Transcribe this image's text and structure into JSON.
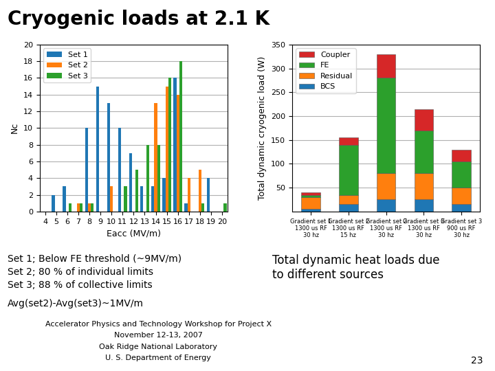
{
  "title": "Cryogenic loads at 2.1 K",
  "annotations": [
    "Set 1; Below FE threshold (~9MV/m)",
    "Set 2; 80 % of individual limits",
    "Set 3; 88 % of collective limits",
    "Avg(set2)-Avg(set3)~1MV/m",
    "Total dynamic heat loads due\nto different sources",
    "Accelerator Physics and Technology Workshop for Project X",
    "November 12-13, 2007",
    "Oak Ridge National Laboratory",
    "U. S. Department of Energy",
    "23"
  ],
  "chart_data": [
    {
      "type": "bar",
      "x_label": "Eacc (MV/m)",
      "y_label": "Nc",
      "x": [
        4,
        5,
        6,
        7,
        8,
        9,
        10,
        11,
        12,
        13,
        14,
        15,
        16,
        17,
        18,
        19,
        20
      ],
      "xlim": [
        3.5,
        20.5
      ],
      "xticks": [
        4,
        5,
        6,
        7,
        8,
        9,
        10,
        11,
        12,
        13,
        14,
        15,
        16,
        17,
        18,
        19,
        20
      ],
      "ylim": [
        0,
        20
      ],
      "yticks": [
        0,
        2,
        4,
        6,
        8,
        10,
        12,
        14,
        16,
        18,
        20
      ],
      "grid": true,
      "legend": "upper left",
      "series": [
        {
          "name": "Set 1",
          "values": [
            0,
            2,
            3,
            0,
            10,
            15,
            13,
            10,
            7,
            3,
            3,
            4,
            16,
            1,
            0,
            4,
            0
          ]
        },
        {
          "name": "Set 2",
          "values": [
            0,
            0,
            0,
            1,
            1,
            0,
            3,
            0,
            0,
            0,
            13,
            15,
            14,
            4,
            5,
            0,
            0
          ]
        },
        {
          "name": "Set 3",
          "values": [
            0,
            0,
            1,
            1,
            1,
            0,
            0,
            3,
            5,
            8,
            8,
            16,
            18,
            0,
            1,
            0,
            1
          ]
        }
      ]
    },
    {
      "type": "bar",
      "stacked": true,
      "y_label": "Total dynamic cryogenic load (W)",
      "categories": [
        "Gradient set 1\n1300 us RF\n30 hz",
        "Gradient set 2\n1300 us RF\n15 hz",
        "Gradient set 2\n1300 us RF\n30 hz",
        "Gradient set 3\n1300 us RF\n30 hz",
        "Gradient set 3\n900 us RF\n30 hz"
      ],
      "ylim": [
        0,
        350
      ],
      "yticks": [
        50,
        100,
        150,
        200,
        250,
        300,
        350
      ],
      "grid": true,
      "legend": "upper left",
      "series": [
        {
          "name": "BCS",
          "values": [
            5,
            15,
            25,
            25,
            15
          ]
        },
        {
          "name": "Residual",
          "values": [
            25,
            20,
            55,
            55,
            35
          ]
        },
        {
          "name": "FE",
          "values": [
            5,
            105,
            200,
            90,
            55
          ]
        },
        {
          "name": "Coupler",
          "values": [
            5,
            15,
            50,
            45,
            25
          ]
        }
      ]
    }
  ]
}
